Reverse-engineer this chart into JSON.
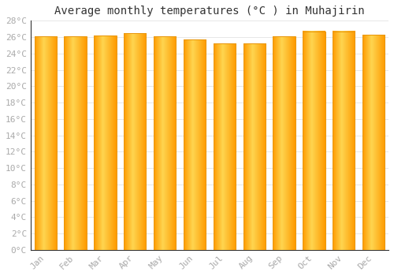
{
  "title": "Average monthly temperatures (°C ) in Muhajirin",
  "months": [
    "Jan",
    "Feb",
    "Mar",
    "Apr",
    "May",
    "Jun",
    "Jul",
    "Aug",
    "Sep",
    "Oct",
    "Nov",
    "Dec"
  ],
  "values": [
    26.1,
    26.1,
    26.2,
    26.5,
    26.1,
    25.7,
    25.2,
    25.2,
    26.1,
    26.7,
    26.7,
    26.3
  ],
  "bar_color_left": "#FFC200",
  "bar_color_center": "#FFD966",
  "bar_color_right": "#FFA500",
  "bar_edge_color": "#E8960A",
  "background_color": "#FFFFFF",
  "grid_color": "#DDDDDD",
  "ylim": [
    0,
    28
  ],
  "ytick_step": 2,
  "title_fontsize": 10,
  "tick_fontsize": 8,
  "tick_color": "#AAAAAA",
  "font_family": "monospace",
  "bar_width": 0.75
}
